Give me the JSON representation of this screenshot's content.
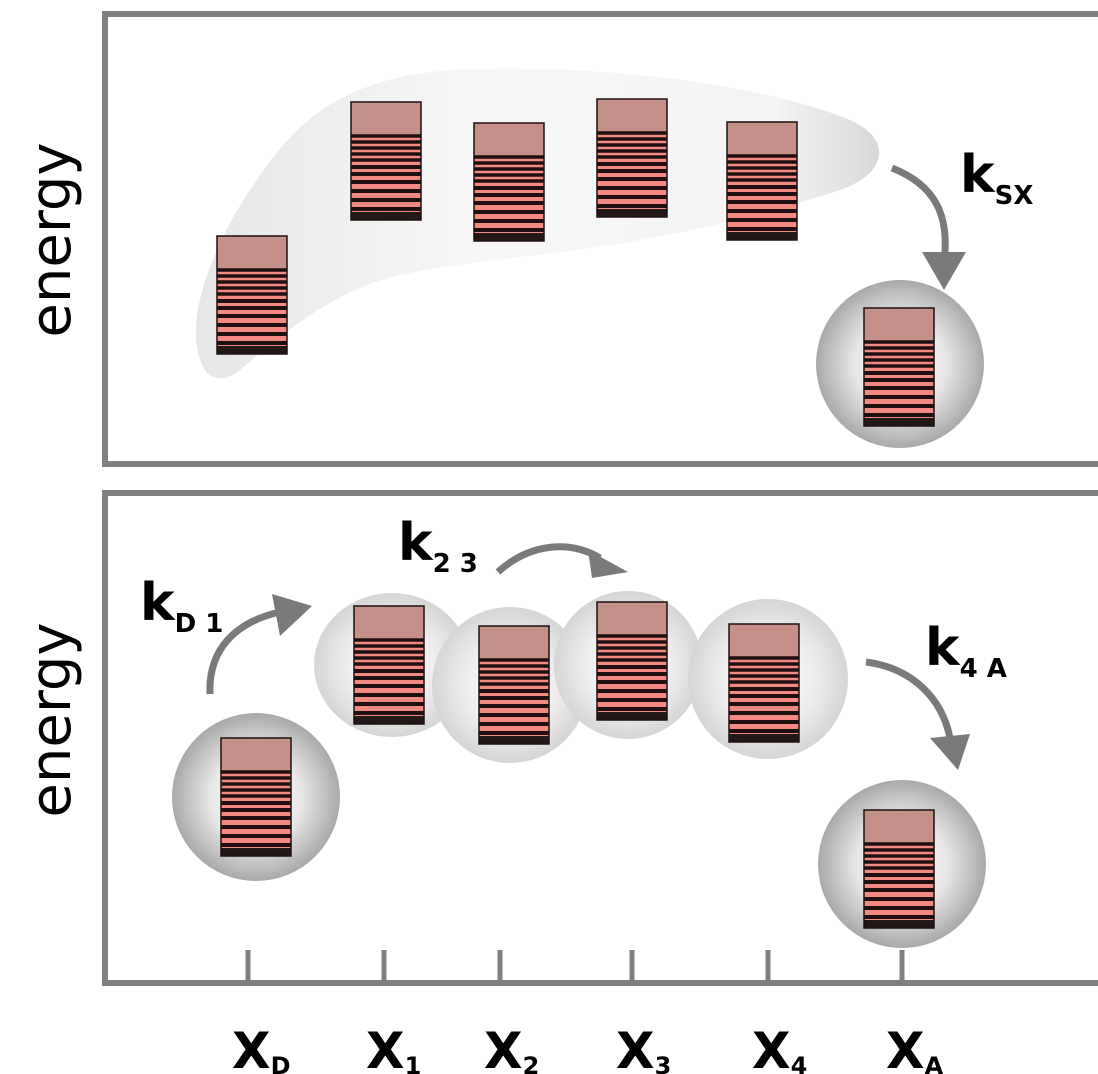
{
  "top_panel": {
    "ylabel": "energy",
    "rate": {
      "main": "k",
      "sub": "SX"
    }
  },
  "bottom_panel": {
    "ylabel": "energy",
    "rates": [
      {
        "id": "kD1",
        "main": "k",
        "sub": "D 1"
      },
      {
        "id": "k23",
        "main": "k",
        "sub": "2 3"
      },
      {
        "id": "k4A",
        "main": "k",
        "sub": "4 A"
      }
    ]
  },
  "x_axis": {
    "labels": [
      {
        "main": "X",
        "sub": "D"
      },
      {
        "main": "X",
        "sub": "1"
      },
      {
        "main": "X",
        "sub": "2"
      },
      {
        "main": "X",
        "sub": "3"
      },
      {
        "main": "X",
        "sub": "4"
      },
      {
        "main": "X",
        "sub": "A"
      }
    ]
  },
  "colors": {
    "frame": "#808080",
    "arrow": "#7a7a7a",
    "level_top": "#c49088",
    "level_band": "#f28a82",
    "level_line": "#1e1010",
    "level_base": "#231818"
  }
}
